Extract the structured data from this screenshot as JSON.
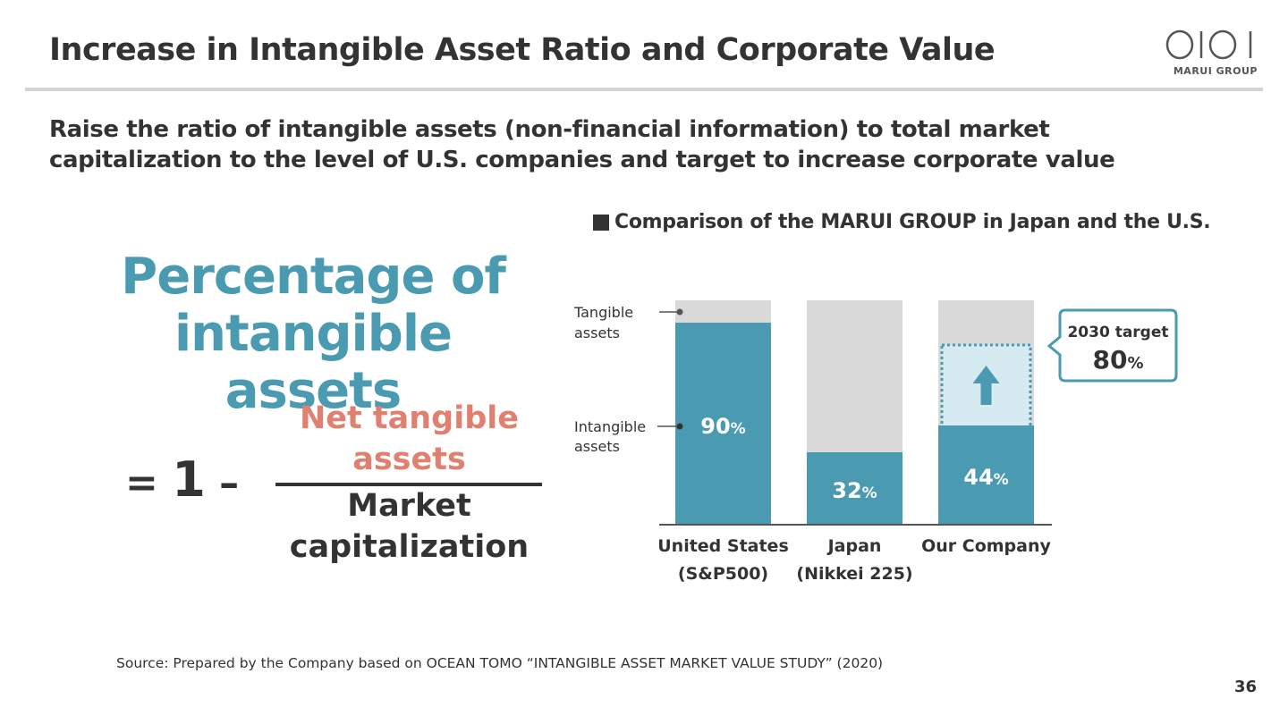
{
  "slide": {
    "title": "Increase in Intangible Asset Ratio and Corporate Value",
    "subtitle": "Raise the ratio of intangible assets (non-financial information) to total market capitalization to the level of U.S. companies and target to increase corporate value",
    "logo_text": "MARUI GROUP",
    "source": "Source: Prepared by the Company based on OCEAN TOMO “INTANGIBLE ASSET MARKET VALUE STUDY” (2020)",
    "page_number": "36"
  },
  "formula": {
    "heading": "Percentage of intangible assets",
    "equals_one": "1",
    "equals_sign": "=",
    "minus": "–",
    "numerator": "Net tangible assets",
    "denominator": "Market capitalization"
  },
  "chart_data": {
    "type": "bar",
    "stacked": true,
    "title": "Comparison of the MARUI GROUP in Japan and the U.S.",
    "categories": [
      "United States\n(S&P500)",
      "Japan\n(Nikkei 225)",
      "Our Company"
    ],
    "series": [
      {
        "name": "Intangible assets",
        "values": [
          90,
          32,
          44
        ],
        "color": "#4a9ab1"
      },
      {
        "name": "Tangible assets",
        "values": [
          10,
          68,
          56
        ],
        "color": "#d9d9d9"
      }
    ],
    "data_labels": [
      "90",
      "32",
      "44"
    ],
    "unit": "%",
    "ylim": [
      0,
      100
    ],
    "legend_labels": [
      "Tangible\nassets",
      "Intangible\nassets"
    ],
    "target": {
      "category": "Our Company",
      "value": 80,
      "label": "2030 target",
      "value_label": "80",
      "unit": "%",
      "fill_color": "#d6eaf1",
      "arrow": "up-arrow-icon"
    },
    "grid": false,
    "colors": {
      "axis": "#555555",
      "label_text": "#333333",
      "value_text": "#ffffff"
    }
  }
}
